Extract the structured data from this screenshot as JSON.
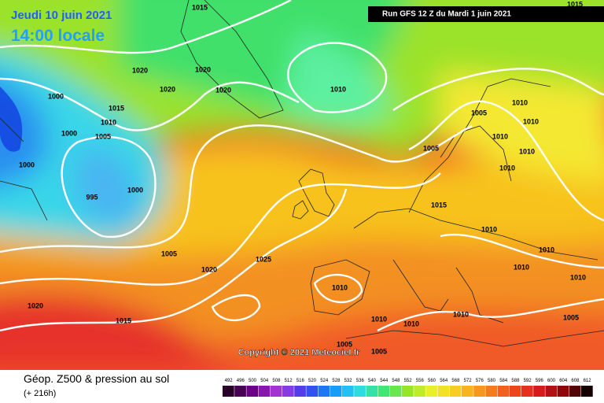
{
  "header": {
    "date": "Jeudi 10 juin 2021",
    "time": "14:00 locale",
    "run": "Run GFS 12 Z du Mardi 1 juin 2021"
  },
  "copyright": "Copyright © 2021 Meteociel.fr",
  "footer": {
    "title": "Géop. Z500 & pression au sol",
    "lead": "(+ 216h)"
  },
  "isobar_labels": [
    "1015",
    "1015",
    "1020",
    "1020",
    "1020",
    "1020",
    "1010",
    "1000",
    "1015",
    "1010",
    "1005",
    "1000",
    "1000",
    "995",
    "1000",
    "1010",
    "1005",
    "1010",
    "1010",
    "1010",
    "1005",
    "1010",
    "1015",
    "1010",
    "1010",
    "1010",
    "1005",
    "1025",
    "1020",
    "1010",
    "1010",
    "1020",
    "1015",
    "1010",
    "1010",
    "1010",
    "1005",
    "1005",
    "1005"
  ],
  "legend": [
    "492",
    "496",
    "500",
    "504",
    "508",
    "512",
    "516",
    "520",
    "524",
    "528",
    "532",
    "536",
    "540",
    "544",
    "548",
    "552",
    "556",
    "560",
    "564",
    "568",
    "572",
    "576",
    "580",
    "584",
    "588",
    "592",
    "596",
    "600",
    "604",
    "608",
    "612"
  ]
}
